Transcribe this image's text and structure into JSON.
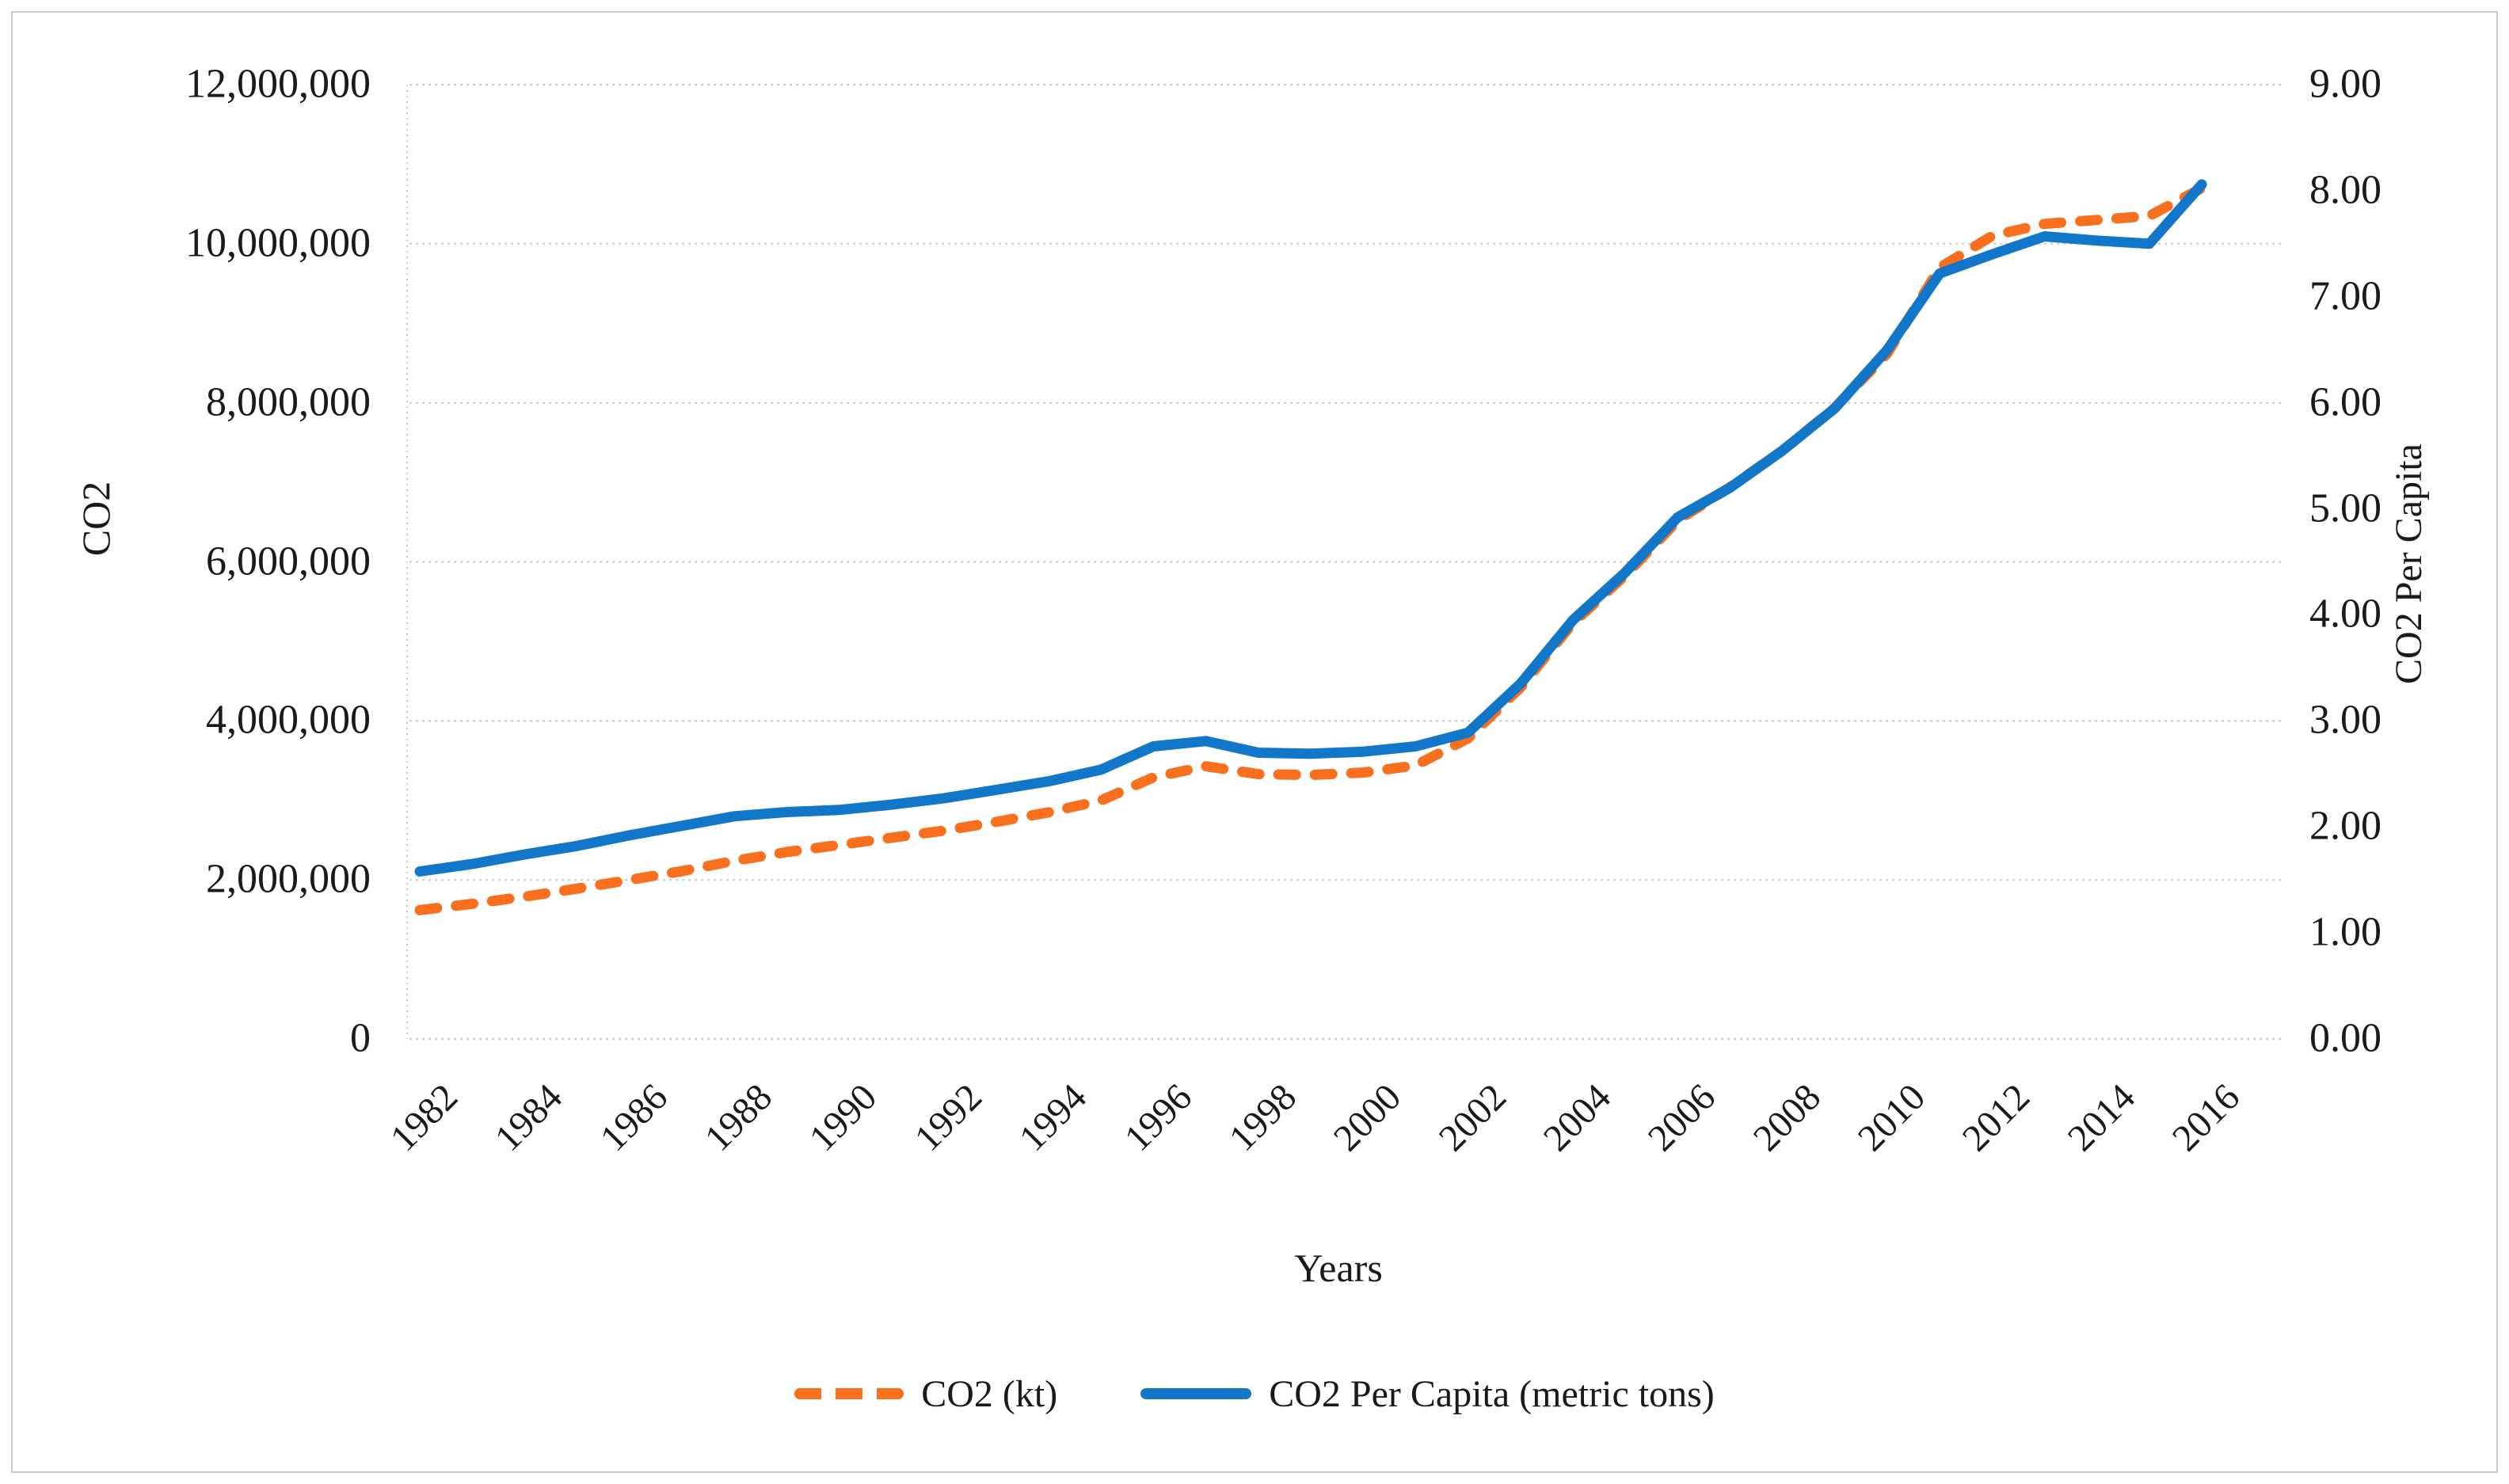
{
  "figure": {
    "kind": "dual-axis line chart",
    "background": "#ffffff",
    "left_axis": {
      "title": "CO2",
      "min": 0,
      "max": 12000000,
      "tick_labels": [
        "0",
        "2,000,000",
        "4,000,000",
        "6,000,000",
        "8,000,000",
        "10,000,000",
        "12,000,000"
      ],
      "tick_values": [
        0,
        2000000,
        4000000,
        6000000,
        8000000,
        10000000,
        12000000
      ]
    },
    "right_axis": {
      "title": "CO2 Per Capita",
      "min": 0,
      "max": 9,
      "tick_labels": [
        "0.00",
        "1.00",
        "2.00",
        "3.00",
        "4.00",
        "5.00",
        "6.00",
        "7.00",
        "8.00",
        "9.00"
      ],
      "tick_values": [
        0,
        1,
        2,
        3,
        4,
        5,
        6,
        7,
        8,
        9
      ]
    },
    "x_axis": {
      "title": "Years",
      "tick_labels": [
        "1982",
        "1984",
        "1986",
        "1988",
        "1990",
        "1992",
        "1994",
        "1996",
        "1998",
        "2000",
        "2002",
        "2004",
        "2006",
        "2008",
        "2010",
        "2012",
        "2014",
        "2016"
      ],
      "tick_years": [
        1982,
        1984,
        1986,
        1988,
        1990,
        1992,
        1994,
        1996,
        1998,
        2000,
        2002,
        2004,
        2006,
        2008,
        2010,
        2012,
        2014,
        2016
      ]
    },
    "legend": [
      {
        "label": "CO2 (kt)",
        "color": "#f8701d",
        "line_style": "dashed"
      },
      {
        "label": "CO2 Per Capita (metric tons)",
        "color": "#1277c8",
        "line_style": "solid"
      }
    ],
    "colors": {
      "co2_kt_line": "#f8701d",
      "co2_per_capita_line": "#1277c8",
      "gridline": "#c9c9c9",
      "border": "#cbcbcb",
      "text": "#1a1a1a"
    }
  },
  "chart_data": {
    "type": "line",
    "title": "",
    "xlabel": "Years",
    "ylabel_left": "CO2",
    "ylabel_right": "CO2 Per Capita",
    "ylim_left": [
      0,
      12000000
    ],
    "ylim_right": [
      0,
      9
    ],
    "grid": true,
    "legend_position": "bottom",
    "x_tick_step": 2,
    "x": [
      1982,
      1983,
      1984,
      1985,
      1986,
      1987,
      1988,
      1989,
      1990,
      1991,
      1992,
      1993,
      1994,
      1995,
      1996,
      1997,
      1998,
      1999,
      2000,
      2001,
      2002,
      2003,
      2004,
      2005,
      2006,
      2007,
      2008,
      2009,
      2010,
      2011,
      2012,
      2013,
      2014,
      2015,
      2016
    ],
    "series": [
      {
        "name": "CO2 (kt)",
        "axis": "left",
        "style": "dashed",
        "color": "#f8701d",
        "values": [
          1620000,
          1700000,
          1790000,
          1890000,
          2000000,
          2110000,
          2240000,
          2350000,
          2440000,
          2530000,
          2620000,
          2730000,
          2850000,
          3000000,
          3290000,
          3430000,
          3330000,
          3320000,
          3350000,
          3440000,
          3780000,
          4420000,
          5230000,
          5830000,
          6520000,
          6940000,
          7400000,
          7940000,
          8620000,
          9700000,
          10100000,
          10250000,
          10300000,
          10350000,
          10700000
        ]
      },
      {
        "name": "CO2 Per Capita (metric tons)",
        "axis": "right",
        "style": "solid",
        "color": "#1277c8",
        "values": [
          1.58,
          1.65,
          1.74,
          1.82,
          1.92,
          2.01,
          2.1,
          2.14,
          2.16,
          2.21,
          2.27,
          2.35,
          2.43,
          2.54,
          2.76,
          2.81,
          2.7,
          2.69,
          2.71,
          2.76,
          2.89,
          3.35,
          3.95,
          4.4,
          4.92,
          5.2,
          5.55,
          5.95,
          6.5,
          7.22,
          7.4,
          7.57,
          7.53,
          7.5,
          8.06
        ]
      }
    ]
  }
}
